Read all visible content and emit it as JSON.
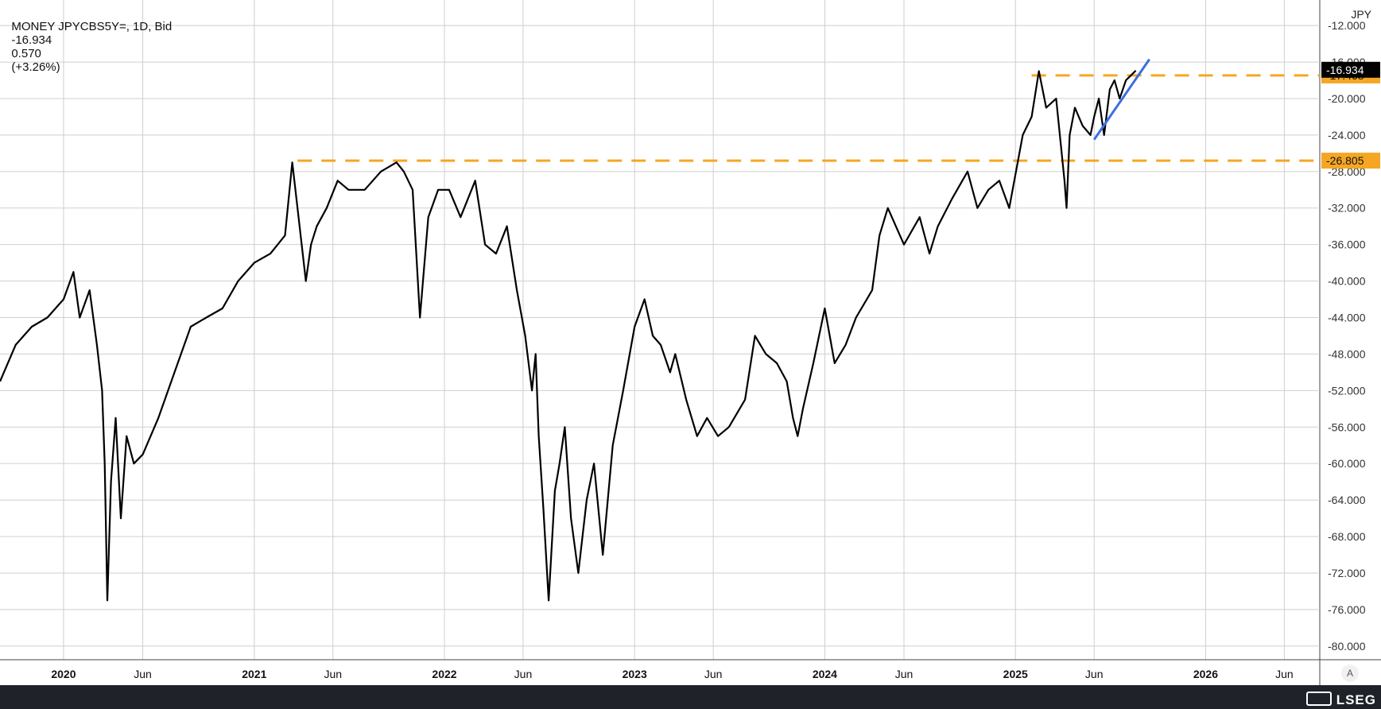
{
  "header": {
    "symbol": "MONEY JPYCBS5Y=, 1D, Bid",
    "last": "-16.934",
    "change": "0.570",
    "change_pct": "(+3.26%)"
  },
  "currency": "JPY",
  "auto_label": "A",
  "brand": "LSEG",
  "colors": {
    "price_line": "#000000",
    "support_line": "#f5a623",
    "trend_line": "#3b6fe0",
    "grid": "#cfcfcf",
    "last_price_tag": "#000000",
    "level_tag": "#f5a623"
  },
  "chart_data": {
    "type": "line",
    "ylabel": "JPY",
    "ylim": [
      -81.5,
      -9.2
    ],
    "yticks": [
      -12,
      -16,
      -20,
      -24,
      -28,
      -32,
      -36,
      -40,
      -44,
      -48,
      -52,
      -56,
      -60,
      -64,
      -68,
      -72,
      -76,
      -80
    ],
    "ytick_labels": [
      "-12.000",
      "-16.000",
      "-20.000",
      "-24.000",
      "-28.000",
      "-32.000",
      "-36.000",
      "-40.000",
      "-44.000",
      "-48.000",
      "-52.000",
      "-56.000",
      "-60.000",
      "-64.000",
      "-68.000",
      "-72.000",
      "-76.000",
      "-80.000"
    ],
    "xlim": [
      "2019-09-01",
      "2026-08-05"
    ],
    "xticks": [
      "2020-01-01",
      "2020-06-01",
      "2021-01-01",
      "2021-06-01",
      "2022-01-01",
      "2022-06-01",
      "2023-01-01",
      "2023-06-01",
      "2024-01-01",
      "2024-06-01",
      "2025-01-01",
      "2025-06-01",
      "2026-01-01",
      "2026-06-01"
    ],
    "xtick_labels": [
      "2020",
      "Jun",
      "2021",
      "Jun",
      "2022",
      "Jun",
      "2023",
      "Jun",
      "2024",
      "Jun",
      "2025",
      "Jun",
      "2026",
      "Jun"
    ],
    "xtick_bold": [
      true,
      false,
      true,
      false,
      true,
      false,
      true,
      false,
      true,
      false,
      true,
      false,
      true,
      false
    ],
    "grid": true,
    "series": [
      {
        "x": [
          "2019-09-01",
          "2019-10-01",
          "2019-11-01",
          "2019-12-01",
          "2020-01-01",
          "2020-01-20",
          "2020-02-01",
          "2020-02-20",
          "2020-03-05",
          "2020-03-15",
          "2020-03-20",
          "2020-03-25",
          "2020-04-01",
          "2020-04-10",
          "2020-04-20",
          "2020-05-01",
          "2020-05-15",
          "2020-06-01",
          "2020-07-01",
          "2020-08-01",
          "2020-09-01",
          "2020-10-01",
          "2020-11-01",
          "2020-12-01",
          "2021-01-01",
          "2021-02-01",
          "2021-03-01",
          "2021-03-15",
          "2021-03-25",
          "2021-04-10",
          "2021-04-20",
          "2021-05-01",
          "2021-05-20",
          "2021-06-10",
          "2021-07-01",
          "2021-08-01",
          "2021-09-01",
          "2021-10-01",
          "2021-10-15",
          "2021-11-01",
          "2021-11-15",
          "2021-12-01",
          "2021-12-20",
          "2022-01-10",
          "2022-02-01",
          "2022-03-01",
          "2022-03-20",
          "2022-04-10",
          "2022-05-01",
          "2022-05-20",
          "2022-06-05",
          "2022-06-18",
          "2022-06-25",
          "2022-07-01",
          "2022-07-10",
          "2022-07-20",
          "2022-08-01",
          "2022-08-10",
          "2022-08-20",
          "2022-09-01",
          "2022-09-15",
          "2022-10-01",
          "2022-10-15",
          "2022-11-01",
          "2022-11-20",
          "2022-12-10",
          "2023-01-01",
          "2023-01-20",
          "2023-02-05",
          "2023-02-20",
          "2023-03-10",
          "2023-03-20",
          "2023-04-10",
          "2023-05-01",
          "2023-05-20",
          "2023-06-10",
          "2023-07-01",
          "2023-08-01",
          "2023-08-20",
          "2023-09-10",
          "2023-10-01",
          "2023-10-20",
          "2023-11-01",
          "2023-11-10",
          "2023-11-20",
          "2023-12-10",
          "2024-01-01",
          "2024-01-20",
          "2024-02-10",
          "2024-03-01",
          "2024-04-01",
          "2024-04-15",
          "2024-05-01",
          "2024-06-01",
          "2024-07-01",
          "2024-07-20",
          "2024-08-05",
          "2024-09-01",
          "2024-10-01",
          "2024-10-20",
          "2024-11-10",
          "2024-12-01",
          "2024-12-20",
          "2025-01-15",
          "2025-02-01",
          "2025-02-15",
          "2025-03-01",
          "2025-03-20",
          "2025-04-05",
          "2025-04-09",
          "2025-04-15",
          "2025-04-25",
          "2025-05-10",
          "2025-05-25",
          "2025-06-01",
          "2025-06-10",
          "2025-06-20",
          "2025-07-01",
          "2025-07-10",
          "2025-07-20",
          "2025-08-01",
          "2025-08-20"
        ],
        "y": [
          -51,
          -47,
          -45,
          -44,
          -42,
          -39,
          -44,
          -41,
          -47,
          -52,
          -60,
          -75,
          -62,
          -55,
          -66,
          -57,
          -60,
          -59,
          -55,
          -50,
          -45,
          -44,
          -43,
          -40,
          -38,
          -37,
          -35,
          -27,
          -32,
          -40,
          -36,
          -34,
          -32,
          -29,
          -30,
          -30,
          -28,
          -27,
          -28,
          -30,
          -44,
          -33,
          -30,
          -30,
          -33,
          -29,
          -36,
          -37,
          -34,
          -41,
          -46,
          -52,
          -48,
          -57,
          -65,
          -75,
          -63,
          -60,
          -56,
          -66,
          -72,
          -64,
          -60,
          -70,
          -58,
          -52,
          -45,
          -42,
          -46,
          -47,
          -50,
          -48,
          -53,
          -57,
          -55,
          -57,
          -56,
          -53,
          -46,
          -48,
          -49,
          -51,
          -55,
          -57,
          -54,
          -49,
          -43,
          -49,
          -47,
          -44,
          -41,
          -35,
          -32,
          -36,
          -33,
          -37,
          -34,
          -31,
          -28,
          -32,
          -30,
          -29,
          -32,
          -24,
          -22,
          -17,
          -21,
          -20,
          -29,
          -32,
          -24,
          -21,
          -23,
          -24,
          -22,
          -20,
          -24,
          -19,
          -18,
          -20,
          -18,
          -16.934
        ]
      }
    ],
    "horizontal_levels": [
      {
        "value": -17.468,
        "label": "-17.468",
        "from": "2025-02-01"
      },
      {
        "value": -26.805,
        "label": "-26.805",
        "from": "2021-03-25"
      }
    ],
    "trendline": {
      "x": [
        "2025-06-01",
        "2025-09-15"
      ],
      "y": [
        -24.5,
        -15.7
      ]
    },
    "last_value": {
      "value": -16.934,
      "label": "-16.934"
    }
  }
}
